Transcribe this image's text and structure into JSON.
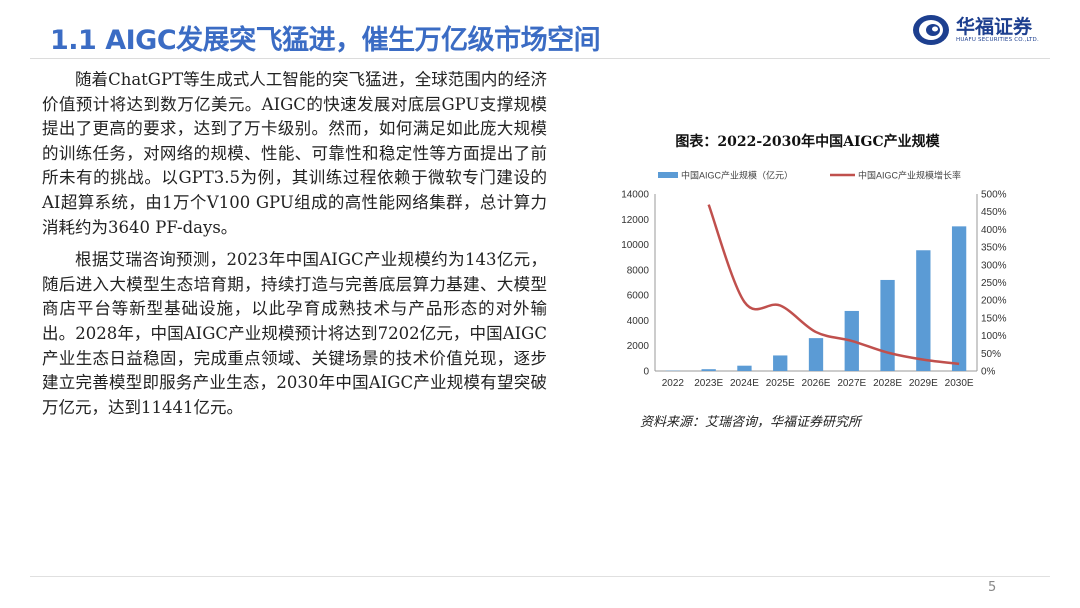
{
  "header": {
    "title": "1.1 AIGC发展突飞猛进，催生万亿级市场空间",
    "logo_cn": "华福证券",
    "logo_en": "HUAFU SECURITIES CO.,LTD."
  },
  "body": {
    "paragraphs": [
      "随着ChatGPT等生成式人工智能的突飞猛进，全球范围内的经济价值预计将达到数万亿美元。AIGC的快速发展对底层GPU支撑规模提出了更高的要求，达到了万卡级别。然而，如何满足如此庞大规模的训练任务，对网络的规模、性能、可靠性和稳定性等方面提出了前所未有的挑战。以GPT3.5为例，其训练过程依赖于微软专门建设的AI超算系统，由1万个V100 GPU组成的高性能网络集群，总计算力消耗约为3640 PF-days。",
      "根据艾瑞咨询预测，2023年中国AIGC产业规模约为143亿元，随后进入大模型生态培育期，持续打造与完善底层算力基建、大模型商店平台等新型基础设施，以此孕育成熟技术与产品形态的对外输出。2028年，中国AIGC产业规模预计将达到7202亿元，中国AIGC产业生态日益稳固，完成重点领域、关键场景的技术价值兑现，逐步建立完善模型即服务产业生态，2030年中国AIGC产业规模有望突破万亿元，达到11441亿元。"
    ]
  },
  "chart_data": {
    "type": "bar",
    "title": "图表：2022-2030年中国AIGC产业规模",
    "categories": [
      "2022",
      "2023E",
      "2024E",
      "2025E",
      "2026E",
      "2027E",
      "2028E",
      "2029E",
      "2030E"
    ],
    "series": [
      {
        "name": "中国AIGC产业规模（亿元）",
        "type": "bar",
        "axis": "left",
        "color": "#5b9bd5",
        "values": [
          25,
          143,
          420,
          1230,
          2600,
          4750,
          7202,
          9550,
          11441
        ]
      },
      {
        "name": "中国AIGC产业规模增长率",
        "type": "line",
        "axis": "right",
        "color": "#c0504d",
        "values": [
          null,
          470,
          195,
          185,
          110,
          85,
          52,
          32,
          20
        ]
      }
    ],
    "y_left": {
      "min": 0,
      "max": 14000,
      "ticks": [
        "0",
        "2000",
        "4000",
        "6000",
        "8000",
        "10000",
        "12000",
        "14000"
      ]
    },
    "y_right": {
      "min": 0,
      "max": 500,
      "ticks": [
        "0%",
        "50%",
        "100%",
        "150%",
        "200%",
        "250%",
        "300%",
        "350%",
        "400%",
        "450%",
        "500%"
      ]
    },
    "legend": "top",
    "grid": false
  },
  "source": "资料来源：艾瑞咨询，华福证券研究所",
  "footer": {
    "page": "5"
  }
}
